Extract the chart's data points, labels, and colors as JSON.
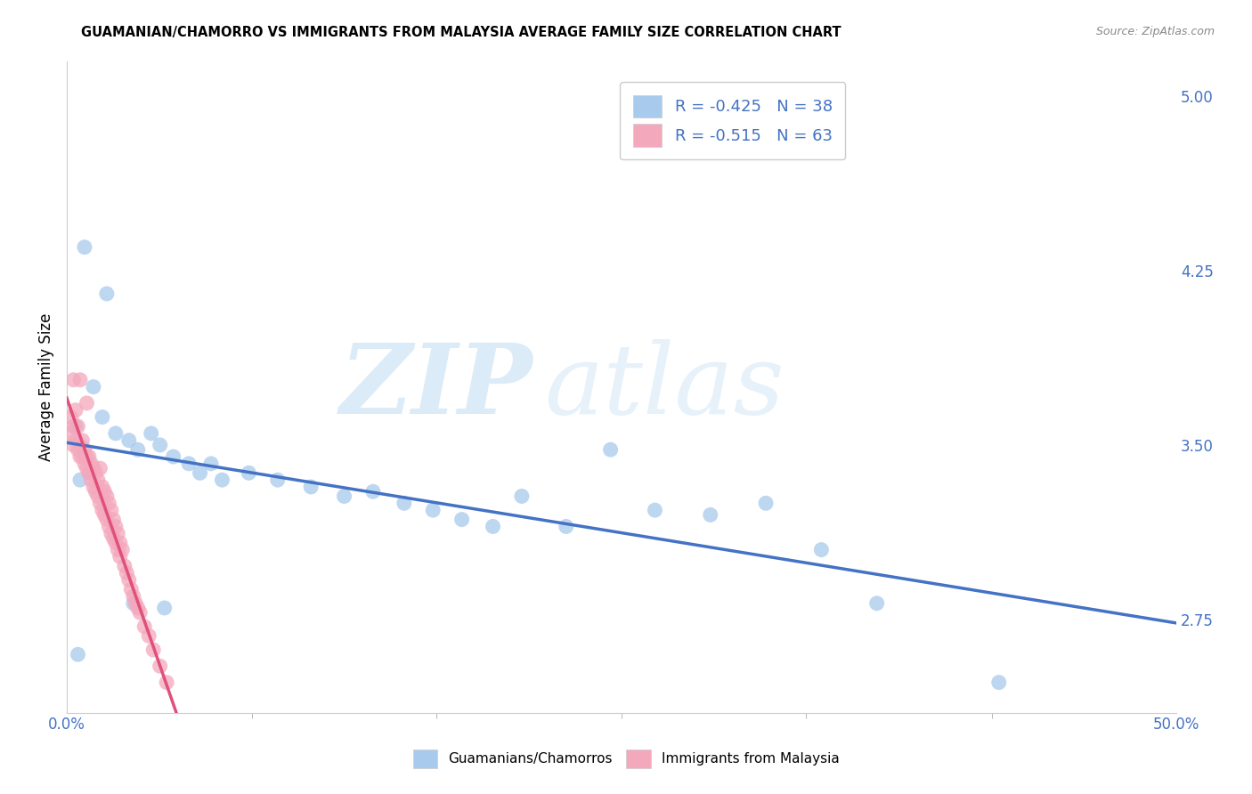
{
  "title": "GUAMANIAN/CHAMORRO VS IMMIGRANTS FROM MALAYSIA AVERAGE FAMILY SIZE CORRELATION CHART",
  "source": "Source: ZipAtlas.com",
  "ylabel": "Average Family Size",
  "xlim": [
    0.0,
    0.5
  ],
  "ylim": [
    2.35,
    5.15
  ],
  "yticks": [
    2.75,
    3.5,
    4.25,
    5.0
  ],
  "xticks_minor": [
    0.0,
    0.0833,
    0.1667,
    0.25,
    0.333,
    0.4167,
    0.5
  ],
  "legend_text1": "R = -0.425   N = 38",
  "legend_text2": "R = -0.515   N = 63",
  "color_blue": "#A8CAEC",
  "color_pink": "#F4A8BC",
  "trendline_blue": "#4472C4",
  "trendline_pink": "#E0507A",
  "background": "#FFFFFF",
  "grid_color": "#CCCCCC",
  "blue_points_x": [
    0.008,
    0.012,
    0.018,
    0.022,
    0.028,
    0.032,
    0.038,
    0.042,
    0.048,
    0.055,
    0.06,
    0.065,
    0.07,
    0.082,
    0.095,
    0.11,
    0.125,
    0.138,
    0.152,
    0.165,
    0.178,
    0.192,
    0.205,
    0.225,
    0.245,
    0.265,
    0.29,
    0.315,
    0.34,
    0.365,
    0.004,
    0.006,
    0.01,
    0.016,
    0.03,
    0.044,
    0.42,
    0.005
  ],
  "blue_points_y": [
    4.35,
    3.75,
    4.15,
    3.55,
    3.52,
    3.48,
    3.55,
    3.5,
    3.45,
    3.42,
    3.38,
    3.42,
    3.35,
    3.38,
    3.35,
    3.32,
    3.28,
    3.3,
    3.25,
    3.22,
    3.18,
    3.15,
    3.28,
    3.15,
    3.48,
    3.22,
    3.2,
    3.25,
    3.05,
    2.82,
    3.58,
    3.35,
    3.38,
    3.62,
    2.82,
    2.8,
    2.48,
    2.6
  ],
  "pink_points_x": [
    0.002,
    0.002,
    0.003,
    0.003,
    0.004,
    0.004,
    0.005,
    0.005,
    0.006,
    0.006,
    0.007,
    0.007,
    0.008,
    0.008,
    0.009,
    0.009,
    0.01,
    0.01,
    0.011,
    0.011,
    0.012,
    0.012,
    0.013,
    0.013,
    0.014,
    0.014,
    0.015,
    0.015,
    0.016,
    0.016,
    0.017,
    0.017,
    0.018,
    0.018,
    0.019,
    0.019,
    0.02,
    0.02,
    0.021,
    0.021,
    0.022,
    0.022,
    0.023,
    0.023,
    0.024,
    0.024,
    0.025,
    0.026,
    0.027,
    0.028,
    0.029,
    0.03,
    0.031,
    0.032,
    0.033,
    0.035,
    0.037,
    0.039,
    0.042,
    0.045,
    0.003,
    0.006,
    0.009
  ],
  "pink_points_y": [
    3.62,
    3.55,
    3.58,
    3.5,
    3.65,
    3.52,
    3.58,
    3.48,
    3.5,
    3.45,
    3.52,
    3.45,
    3.48,
    3.42,
    3.45,
    3.4,
    3.45,
    3.38,
    3.42,
    3.35,
    3.4,
    3.32,
    3.38,
    3.3,
    3.35,
    3.28,
    3.4,
    3.25,
    3.32,
    3.22,
    3.3,
    3.2,
    3.28,
    3.18,
    3.25,
    3.15,
    3.22,
    3.12,
    3.18,
    3.1,
    3.15,
    3.08,
    3.12,
    3.05,
    3.08,
    3.02,
    3.05,
    2.98,
    2.95,
    2.92,
    2.88,
    2.85,
    2.82,
    2.8,
    2.78,
    2.72,
    2.68,
    2.62,
    2.55,
    2.48,
    3.78,
    3.78,
    3.68
  ],
  "pink_trendline_x": [
    0.0,
    0.065
  ],
  "blue_trendline_x": [
    0.0,
    0.5
  ]
}
